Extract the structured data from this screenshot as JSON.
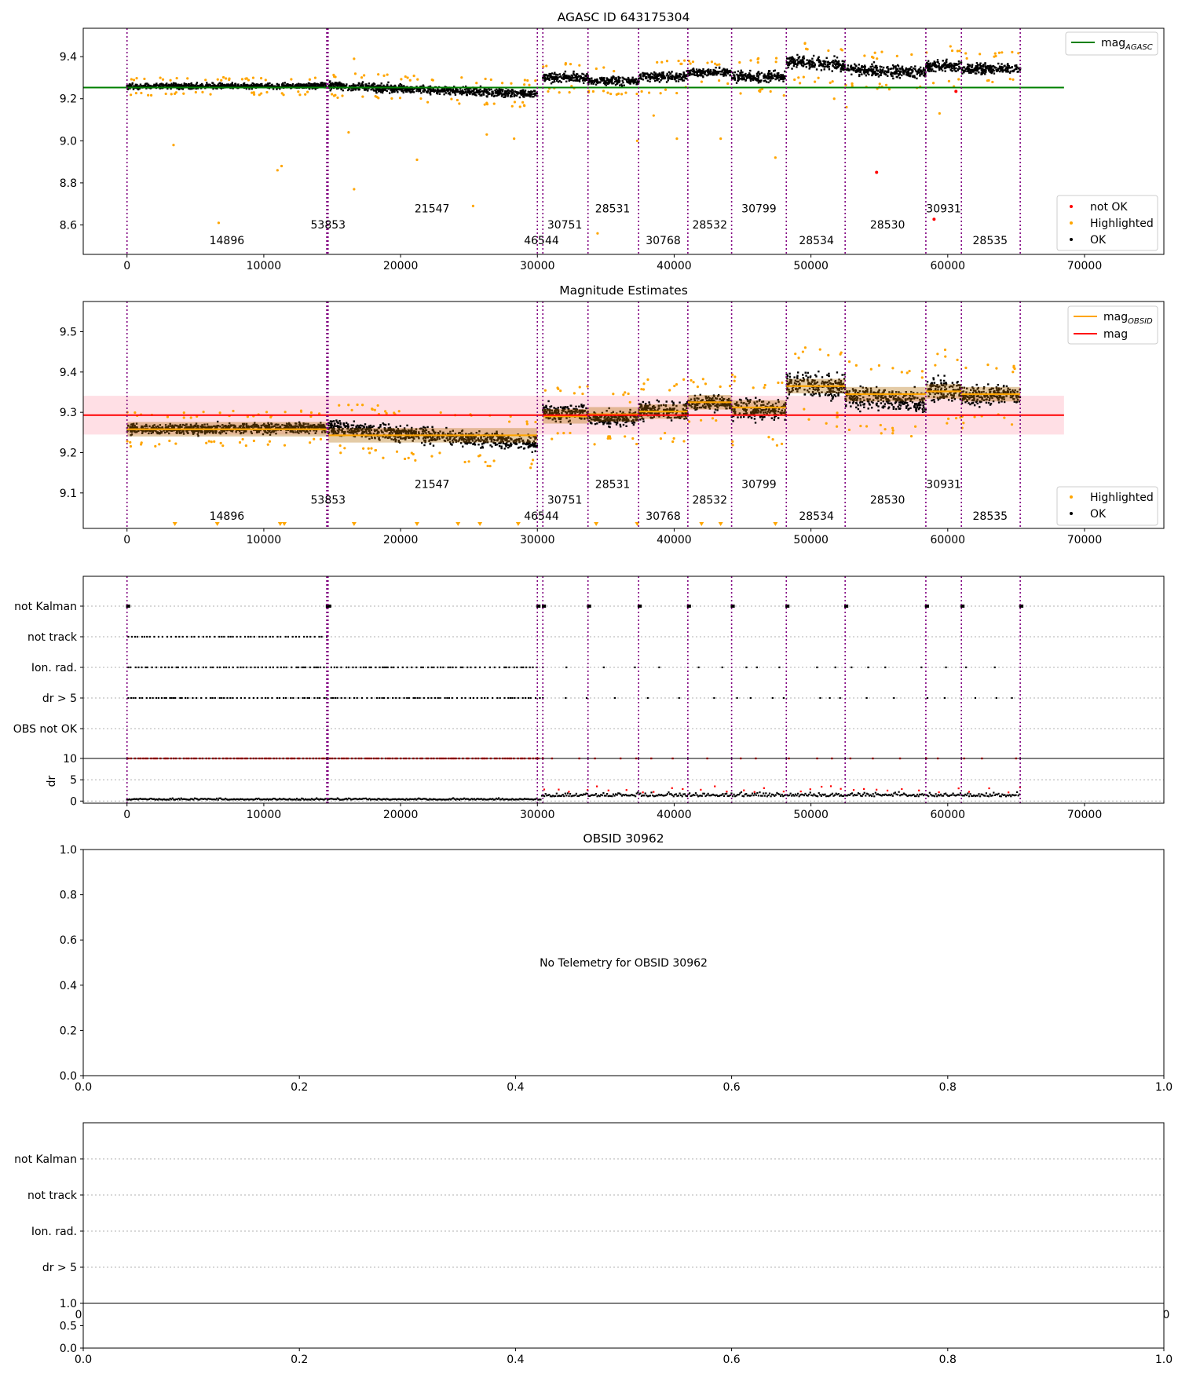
{
  "obs_starts": [
    0,
    14600,
    14650,
    14700,
    30000,
    30400,
    33700,
    37400,
    41000,
    44200,
    48200,
    52500,
    58400,
    61000,
    65300
  ],
  "obs_labels": [
    {
      "id": "14896",
      "x": 7300,
      "row": "low"
    },
    {
      "id": "53853",
      "x": 14700,
      "row": "mid"
    },
    {
      "id": "21547",
      "x": 22300,
      "row": "high"
    },
    {
      "id": "46544",
      "x": 30300,
      "row": "low"
    },
    {
      "id": "30751",
      "x": 32000,
      "row": "mid"
    },
    {
      "id": "28531",
      "x": 35500,
      "row": "high"
    },
    {
      "id": "30768",
      "x": 39200,
      "row": "low"
    },
    {
      "id": "28532",
      "x": 42600,
      "row": "mid"
    },
    {
      "id": "30799",
      "x": 46200,
      "row": "high"
    },
    {
      "id": "28534",
      "x": 50400,
      "row": "low"
    },
    {
      "id": "28530",
      "x": 55600,
      "row": "mid"
    },
    {
      "id": "30931",
      "x": 59700,
      "row": "high"
    },
    {
      "id": "28535",
      "x": 63100,
      "row": "low"
    }
  ],
  "panel1": {
    "title": "AGASC ID 643175304",
    "xlim": [
      -3200,
      75800
    ],
    "ylim": [
      8.46,
      9.535
    ],
    "xticks": [
      0,
      10000,
      20000,
      30000,
      40000,
      50000,
      60000,
      70000
    ],
    "xtick_labels": [
      "0",
      "10000",
      "20000",
      "30000",
      "40000",
      "50000",
      "60000",
      "70000"
    ],
    "yticks": [
      8.6,
      8.8,
      9.0,
      9.2,
      9.4
    ],
    "ytick_labels": [
      "8.6",
      "8.8",
      "9.0",
      "9.2",
      "9.4"
    ],
    "label_y": {
      "high": 8.659,
      "mid": 8.584,
      "low": 8.509
    },
    "mag_agasc": 9.253,
    "mag_agasc_xrange": [
      -3200,
      68500
    ],
    "legend_top": {
      "label_main": "mag",
      "label_sub": "AGASC"
    },
    "legend_bottom": [
      "not OK",
      "Highlighted",
      "OK"
    ],
    "red_points": [
      [
        54800,
        8.85
      ],
      [
        60600,
        9.235
      ],
      [
        59000,
        8.627
      ]
    ],
    "orange_outliers": [
      [
        3400,
        8.98
      ],
      [
        6700,
        8.61
      ],
      [
        11000,
        8.86
      ],
      [
        11300,
        8.88
      ],
      [
        16600,
        9.39
      ],
      [
        16600,
        8.77
      ],
      [
        21200,
        8.91
      ],
      [
        25300,
        8.69
      ],
      [
        26300,
        9.03
      ],
      [
        28300,
        9.01
      ],
      [
        34400,
        8.56
      ],
      [
        37300,
        9.0
      ],
      [
        38500,
        9.12
      ],
      [
        40200,
        9.01
      ],
      [
        43400,
        9.01
      ],
      [
        47400,
        8.92
      ],
      [
        51700,
        9.2
      ],
      [
        52600,
        9.16
      ],
      [
        59400,
        9.13
      ],
      [
        35800,
        9.22
      ],
      [
        32500,
        9.26
      ],
      [
        16200,
        9.04
      ]
    ]
  },
  "panel2": {
    "title": "Magnitude Estimates",
    "xlim": [
      -3200,
      75800
    ],
    "ylim": [
      9.012,
      9.575
    ],
    "yticks": [
      9.1,
      9.2,
      9.3,
      9.4,
      9.5
    ],
    "ytick_labels": [
      "9.1",
      "9.2",
      "9.3",
      "9.4",
      "9.5"
    ],
    "xticks": [
      0,
      10000,
      20000,
      30000,
      40000,
      50000,
      60000,
      70000
    ],
    "xtick_labels": [
      "0",
      "10000",
      "20000",
      "30000",
      "40000",
      "50000",
      "60000",
      "70000"
    ],
    "label_y": {
      "high": 9.112,
      "mid": 9.073,
      "low": 9.033
    },
    "mag": 9.293,
    "mag_band": [
      9.245,
      9.341
    ],
    "mag_xrange": [
      -3200,
      68500
    ],
    "legend_top": [
      {
        "label_main": "mag",
        "label_sub": "OBSID"
      },
      {
        "label_main": "mag",
        "label_sub": ""
      }
    ],
    "legend_bottom": [
      "Highlighted",
      "OK"
    ],
    "obsid_mags": [
      {
        "x0": 0,
        "x1": 14600,
        "mag": 9.258
      },
      {
        "x0": 14700,
        "x1": 30000,
        "mag": 9.243
      },
      {
        "x0": 30400,
        "x1": 33700,
        "mag": 9.29
      },
      {
        "x0": 33700,
        "x1": 37400,
        "mag": 9.295
      },
      {
        "x0": 37400,
        "x1": 41000,
        "mag": 9.302
      },
      {
        "x0": 41000,
        "x1": 44200,
        "mag": 9.325
      },
      {
        "x0": 44200,
        "x1": 48200,
        "mag": 9.312
      },
      {
        "x0": 48200,
        "x1": 52500,
        "mag": 9.365
      },
      {
        "x0": 52500,
        "x1": 58400,
        "mag": 9.345
      },
      {
        "x0": 58400,
        "x1": 61000,
        "mag": 9.352
      },
      {
        "x0": 61000,
        "x1": 65300,
        "mag": 9.345
      }
    ],
    "triangles_x": [
      3500,
      6600,
      11200,
      11500,
      16600,
      21200,
      24200,
      25800,
      28600,
      34300,
      37300,
      42000,
      43400,
      47400
    ]
  },
  "panel3": {
    "xlim": [
      -3200,
      75800
    ],
    "categories": [
      "not Kalman",
      "not track",
      "Ion. rad.",
      "dr > 5",
      "OBS not OK"
    ],
    "xticks": [
      0,
      10000,
      20000,
      30000,
      40000,
      50000,
      60000,
      70000
    ],
    "xtick_labels": [
      "0",
      "10000",
      "20000",
      "30000",
      "40000",
      "50000",
      "60000",
      "70000"
    ],
    "dr_ylim": [
      -0.5,
      10
    ],
    "dr_yticks": [
      0,
      5,
      10
    ],
    "dr_ytick_labels": [
      "0",
      "5",
      "10"
    ],
    "dr_label": "dr"
  },
  "panel4": {
    "title": "OBSID 30962",
    "message": "No Telemetry for OBSID 30962",
    "xticks": [
      0.0,
      0.2,
      0.4,
      0.6,
      0.8,
      1.0
    ],
    "xtick_labels": [
      "0.0",
      "0.2",
      "0.4",
      "0.6",
      "0.8",
      "1.0"
    ],
    "yticks": [
      0.0,
      0.2,
      0.4,
      0.6,
      0.8,
      1.0
    ],
    "ytick_labels": [
      "0.0",
      "0.2",
      "0.4",
      "0.6",
      "0.8",
      "1.0"
    ]
  },
  "panel5": {
    "categories": [
      "not Kalman",
      "not track",
      "Ion. rad.",
      "dr > 5"
    ],
    "upper_clip_labels": [
      "0",
      "0"
    ],
    "lower_yticks": [
      0.0,
      0.5,
      1.0
    ],
    "lower_ytick_labels": [
      "0.0",
      "0.5",
      "1.0"
    ],
    "xticks": [
      0.0,
      0.2,
      0.4,
      0.6,
      0.8,
      1.0
    ],
    "xtick_labels": [
      "0.0",
      "0.2",
      "0.4",
      "0.6",
      "0.8",
      "1.0"
    ]
  },
  "colors": {
    "ok": "#000000",
    "highlighted": "#ffa500",
    "not_ok": "#ff0000",
    "obs_line": "#800080",
    "mag_agasc": "#008000",
    "mag": "#ff0000",
    "mag_obsid": "#ffa500",
    "band": "#ffc0cb"
  }
}
